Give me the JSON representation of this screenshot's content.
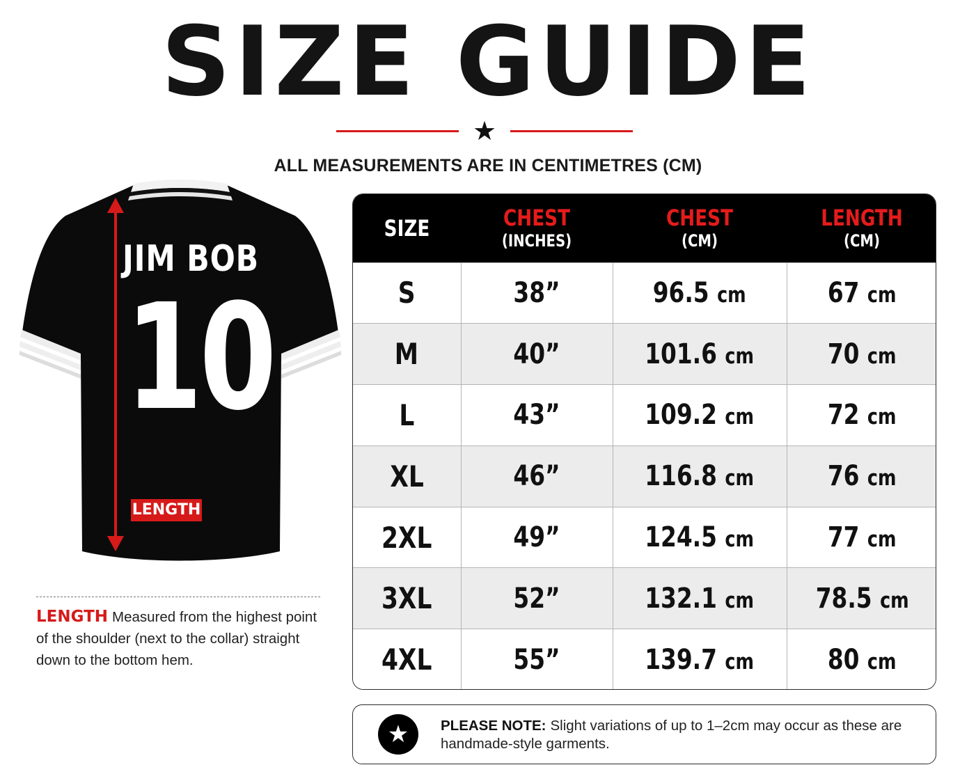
{
  "header": {
    "title": "SIZE GUIDE",
    "star": "★",
    "subtitle": "ALL MEASUREMENTS ARE IN CENTIMETRES (CM)"
  },
  "jersey": {
    "name": "JIM BOB",
    "number": "10",
    "length_tag": "LENGTH"
  },
  "length_note": {
    "keyword": "LENGTH",
    "text": "Measured from the highest point of the shoulder (next to the collar) straight down to the bottom hem."
  },
  "table": {
    "headers": [
      {
        "main": "SIZE",
        "unit": ""
      },
      {
        "main": "CHEST",
        "unit": "(INCHES)"
      },
      {
        "main": "CHEST",
        "unit": "(CM)"
      },
      {
        "main": "LENGTH",
        "unit": "(CM)"
      }
    ],
    "unit_suffix": "cm",
    "rows": [
      {
        "size": "S",
        "chest_in": "38”",
        "chest_cm": "96.5",
        "length_cm": "67"
      },
      {
        "size": "M",
        "chest_in": "40”",
        "chest_cm": "101.6",
        "length_cm": "70"
      },
      {
        "size": "L",
        "chest_in": "43”",
        "chest_cm": "109.2",
        "length_cm": "72"
      },
      {
        "size": "XL",
        "chest_in": "46”",
        "chest_cm": "116.8",
        "length_cm": "76"
      },
      {
        "size": "2XL",
        "chest_in": "49”",
        "chest_cm": "124.5",
        "length_cm": "77"
      },
      {
        "size": "3XL",
        "chest_in": "52”",
        "chest_cm": "132.1",
        "length_cm": "78.5"
      },
      {
        "size": "4XL",
        "chest_in": "55”",
        "chest_cm": "139.7",
        "length_cm": "80"
      }
    ]
  },
  "note": {
    "label": "PLEASE NOTE:",
    "text": "Slight variations of up to 1–2cm may occur as these are handmade-style garments.",
    "icon": "star-icon"
  },
  "colors": {
    "accent_red": "#d61a1a",
    "header_black": "#000000",
    "row_alt": "#ececec"
  }
}
